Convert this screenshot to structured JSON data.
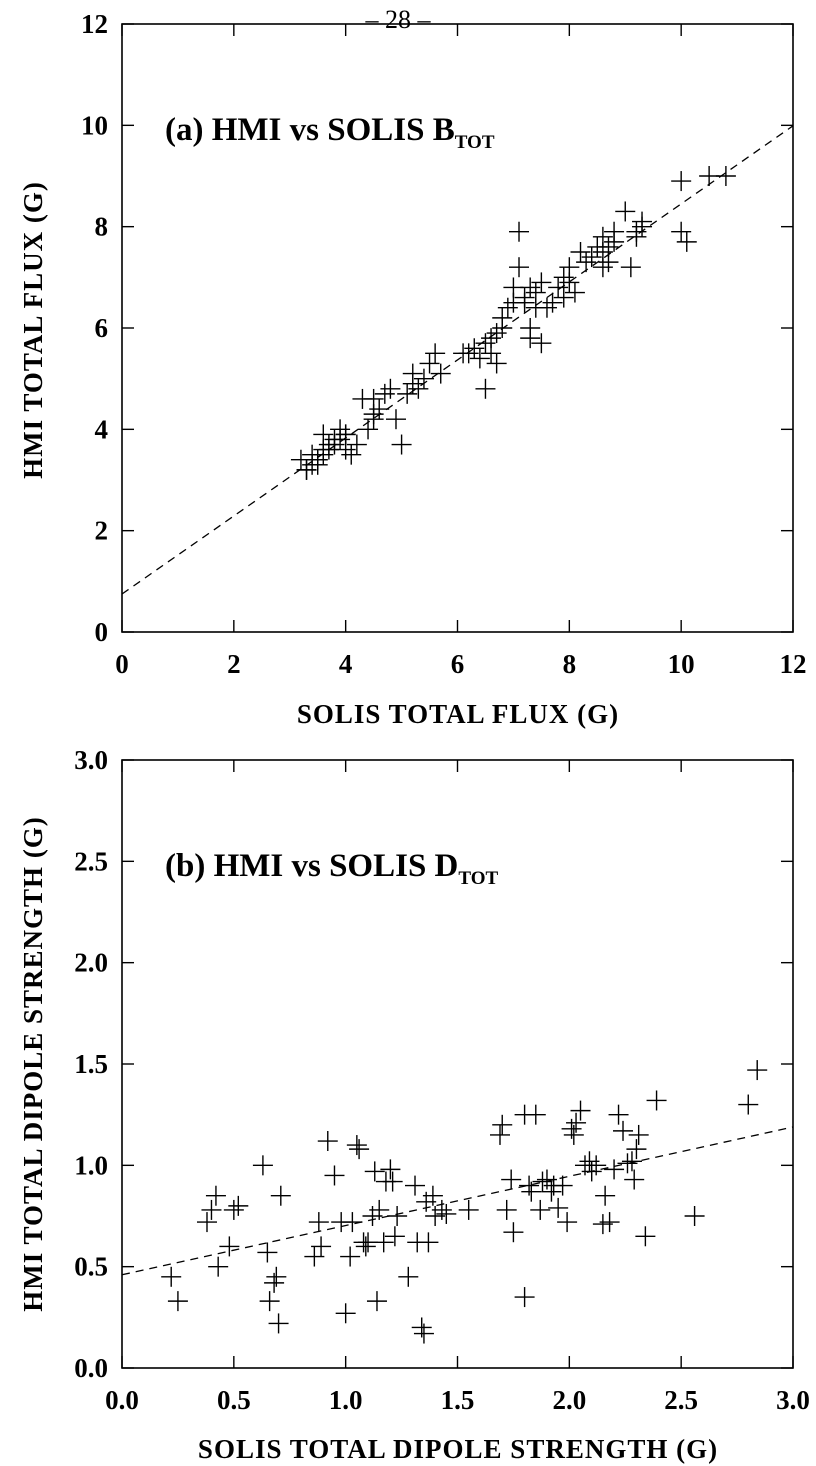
{
  "page_number": "– 28 –",
  "chart_data": [
    {
      "type": "scatter",
      "panel_label": "(a)  HMI  vs  SOLIS  B",
      "panel_label_subscript": "TOT",
      "xlabel": "SOLIS  TOTAL  FLUX  (G)",
      "ylabel": "HMI  TOTAL  FLUX  (G)",
      "xlim": [
        0,
        12
      ],
      "ylim": [
        0,
        12
      ],
      "xticks": [
        0,
        2,
        4,
        6,
        8,
        10,
        12
      ],
      "yticks": [
        0,
        2,
        4,
        6,
        8,
        10,
        12
      ],
      "fit_line": {
        "style": "dashed",
        "intercept": 0.75,
        "slope": 0.77
      },
      "x": [
        3.3,
        3.4,
        3.2,
        3.5,
        3.6,
        3.7,
        3.5,
        3.8,
        3.4,
        3.3,
        3.6,
        3.9,
        4.0,
        4.1,
        3.9,
        3.8,
        4.0,
        3.7,
        4.0,
        4.2,
        3.6,
        3.5,
        4.4,
        4.5,
        4.6,
        4.5,
        4.3,
        4.7,
        4.5,
        4.9,
        5.0,
        5.1,
        5.2,
        5.3,
        5.4,
        5.2,
        4.8,
        5.6,
        5.7,
        5.5,
        6.1,
        6.2,
        6.3,
        6.5,
        6.4,
        6.6,
        6.7,
        6.8,
        6.6,
        6.7,
        6.8,
        6.9,
        7.0,
        7.1,
        7.0,
        7.2,
        7.3,
        7.2,
        7.4,
        7.3,
        7.5,
        7.4,
        7.6,
        7.7,
        7.5,
        7.3,
        7.8,
        7.9,
        8.0,
        7.9,
        8.1,
        8.0,
        8.2,
        8.3,
        8.4,
        8.5,
        8.6,
        8.6,
        8.7,
        8.8,
        8.7,
        8.6,
        8.8,
        9.0,
        9.1,
        9.2,
        9.3,
        9.2,
        9.3,
        10.0,
        10.1,
        10.0,
        10.5,
        10.8,
        7.1,
        6.5
      ],
      "y": [
        3.2,
        3.3,
        3.4,
        3.4,
        3.5,
        3.6,
        3.3,
        3.7,
        3.5,
        3.2,
        3.6,
        3.8,
        3.9,
        3.5,
        4.0,
        3.8,
        3.6,
        3.7,
        3.9,
        3.7,
        3.9,
        3.4,
        4.0,
        4.2,
        4.4,
        4.6,
        4.6,
        4.7,
        4.3,
        4.2,
        3.7,
        4.7,
        4.9,
        4.8,
        5.0,
        5.1,
        4.8,
        5.5,
        5.1,
        5.3,
        5.5,
        5.5,
        5.6,
        5.7,
        5.4,
        5.8,
        5.9,
        6.0,
        5.5,
        5.3,
        6.2,
        6.4,
        6.5,
        7.2,
        6.8,
        6.6,
        6.8,
        6.5,
        6.7,
        5.8,
        6.9,
        6.4,
        6.4,
        6.5,
        5.7,
        6.0,
        6.8,
        7.0,
        6.9,
        6.6,
        6.7,
        7.2,
        7.5,
        7.3,
        7.4,
        7.6,
        7.5,
        7.8,
        7.6,
        7.9,
        7.3,
        7.2,
        7.7,
        8.3,
        7.2,
        7.9,
        8.0,
        7.8,
        8.1,
        7.9,
        7.7,
        8.9,
        9.0,
        9.0,
        7.9,
        4.8
      ]
    },
    {
      "type": "scatter",
      "panel_label": "(b)  HMI  vs  SOLIS  D",
      "panel_label_subscript": "TOT",
      "xlabel": "SOLIS  TOTAL  DIPOLE  STRENGTH  (G)",
      "ylabel": "HMI  TOTAL  DIPOLE  STRENGTH  (G)",
      "xlim": [
        0,
        3
      ],
      "ylim": [
        0,
        3
      ],
      "xticks": [
        "0.0",
        "0.5",
        "1.0",
        "1.5",
        "2.0",
        "2.5",
        "3.0"
      ],
      "yticks": [
        "0.0",
        "0.5",
        "1.0",
        "1.5",
        "2.0",
        "2.5",
        "3.0"
      ],
      "fit_line": {
        "style": "dashed",
        "intercept": 0.46,
        "slope": 0.243
      },
      "x": [
        0.22,
        0.25,
        0.38,
        0.4,
        0.42,
        0.43,
        0.48,
        0.5,
        0.52,
        0.63,
        0.65,
        0.66,
        0.68,
        0.69,
        0.71,
        0.7,
        0.86,
        0.88,
        0.89,
        0.92,
        0.95,
        0.98,
        1.0,
        1.02,
        1.03,
        1.05,
        1.06,
        1.08,
        1.09,
        1.1,
        1.12,
        1.13,
        1.14,
        1.15,
        1.17,
        1.18,
        1.2,
        1.21,
        1.22,
        1.23,
        1.28,
        1.31,
        1.32,
        1.34,
        1.35,
        1.36,
        1.37,
        1.39,
        1.4,
        1.43,
        1.45,
        1.55,
        1.69,
        1.7,
        1.72,
        1.74,
        1.75,
        1.8,
        1.82,
        1.83,
        1.85,
        1.87,
        1.88,
        1.9,
        1.92,
        1.93,
        1.95,
        1.97,
        1.99,
        2.01,
        2.02,
        2.03,
        2.05,
        2.07,
        2.09,
        2.1,
        2.12,
        2.15,
        2.16,
        2.18,
        2.2,
        2.22,
        2.24,
        2.26,
        2.28,
        2.29,
        2.3,
        2.31,
        2.34,
        2.39,
        2.56,
        2.8,
        2.84,
        1.8
      ],
      "y": [
        0.45,
        0.33,
        0.72,
        0.78,
        0.85,
        0.5,
        0.6,
        0.78,
        0.8,
        1.0,
        0.57,
        0.33,
        0.42,
        0.45,
        0.85,
        0.22,
        0.55,
        0.72,
        0.6,
        1.12,
        0.95,
        0.72,
        0.27,
        0.55,
        0.72,
        1.1,
        1.08,
        0.62,
        0.6,
        0.62,
        0.75,
        0.97,
        0.33,
        0.78,
        0.62,
        0.92,
        0.98,
        0.92,
        0.65,
        0.75,
        0.45,
        0.9,
        0.62,
        0.2,
        0.17,
        0.82,
        0.62,
        0.85,
        0.75,
        0.78,
        0.76,
        0.78,
        1.15,
        1.2,
        0.78,
        0.93,
        0.67,
        1.25,
        0.9,
        0.87,
        1.25,
        0.78,
        0.92,
        0.93,
        0.87,
        0.9,
        0.79,
        0.9,
        0.72,
        1.18,
        1.15,
        1.21,
        1.27,
        1.0,
        1.02,
        0.97,
        1.0,
        0.71,
        0.85,
        0.72,
        0.98,
        1.25,
        1.17,
        1.01,
        1.02,
        0.93,
        1.08,
        1.15,
        0.65,
        1.32,
        0.75,
        1.3,
        1.47,
        0.35
      ]
    }
  ]
}
